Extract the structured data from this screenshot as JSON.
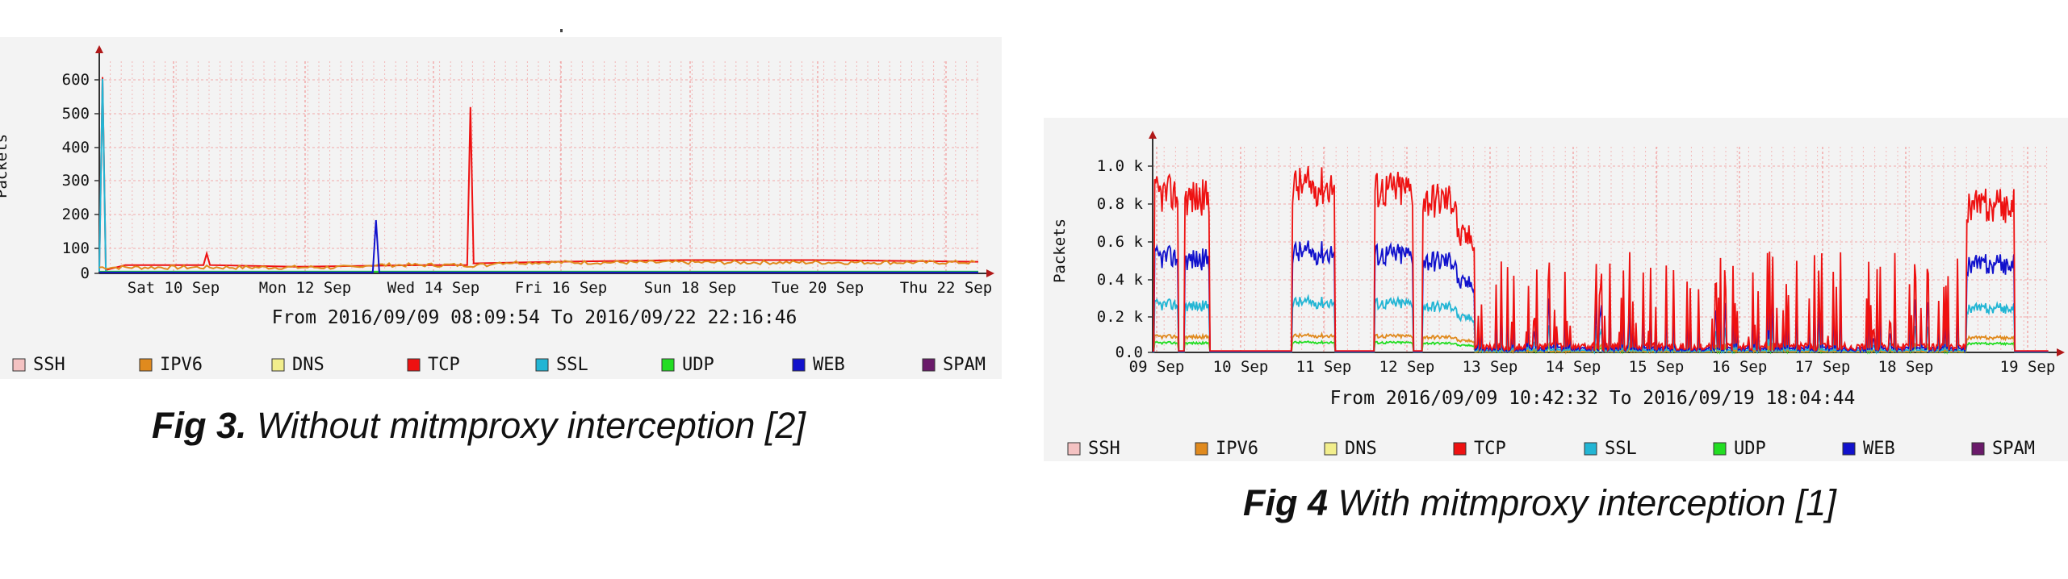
{
  "charts": [
    {
      "type": "line",
      "ylabel": "Packets",
      "yticks": [
        "600",
        "500",
        "400",
        "300",
        "200",
        "100",
        "0"
      ],
      "ylim": [
        0,
        650
      ],
      "xticks": [
        "Sat 10 Sep",
        "Mon 12 Sep",
        "Wed 14 Sep",
        "Fri 16 Sep",
        "Sun 18 Sep",
        "Tue 20 Sep",
        "Thu 22 Sep"
      ],
      "xrange_days": 13.5,
      "range_text": "From 2016/09/09 08:09:54 To 2016/09/22 22:16:46",
      "caption_bold": "Fig 3.",
      "caption_rest": " Without mitmproxy interception [2]"
    },
    {
      "type": "line",
      "ylabel": "Packets",
      "yticks": [
        "1.0 k",
        "0.8 k",
        "0.6 k",
        "0.4 k",
        "0.2 k",
        "0.0"
      ],
      "ylim": [
        0,
        1100
      ],
      "xticks": [
        "09 Sep",
        "10 Sep",
        "11 Sep",
        "12 Sep",
        "13 Sep",
        "14 Sep",
        "15 Sep",
        "16 Sep",
        "17 Sep",
        "18 Sep",
        "19 Sep"
      ],
      "xrange_days": 10.3,
      "range_text": "From 2016/09/09 10:42:32 To 2016/09/19 18:04:44",
      "caption_bold": "Fig 4",
      "caption_rest": " With mitmproxy interception [1]"
    }
  ],
  "legend": [
    {
      "name": "SSH",
      "color": "#f4c2c2"
    },
    {
      "name": "IPV6",
      "color": "#e08a1e"
    },
    {
      "name": "DNS",
      "color": "#f2ee8c"
    },
    {
      "name": "TCP",
      "color": "#ee1111"
    },
    {
      "name": "SSL",
      "color": "#22b5d4"
    },
    {
      "name": "UDP",
      "color": "#22dd22"
    },
    {
      "name": "WEB",
      "color": "#1111cc"
    },
    {
      "name": "SPAM",
      "color": "#6a1a6a"
    }
  ],
  "chart_data": [
    {
      "type": "line",
      "ylabel": "Packets",
      "ylim": [
        0,
        650
      ],
      "x_unit": "days since 2016/09/09 08:09",
      "series": [
        {
          "name": "TCP",
          "points": [
            [
              0.0,
              10
            ],
            [
              0.05,
              590
            ],
            [
              0.1,
              10
            ],
            [
              0.4,
              25
            ],
            [
              1.6,
              25
            ],
            [
              1.65,
              60
            ],
            [
              1.7,
              25
            ],
            [
              3.0,
              20
            ],
            [
              5.0,
              25
            ],
            [
              5.65,
              25
            ],
            [
              5.7,
              500
            ],
            [
              5.75,
              30
            ],
            [
              7.0,
              35
            ],
            [
              9.0,
              40
            ],
            [
              11.0,
              40
            ],
            [
              13.5,
              35
            ]
          ]
        },
        {
          "name": "SSL",
          "points": [
            [
              0.0,
              5
            ],
            [
              0.05,
              585
            ],
            [
              0.1,
              5
            ],
            [
              13.5,
              5
            ]
          ]
        },
        {
          "name": "IPV6",
          "points": [
            [
              0.0,
              15
            ],
            [
              2.0,
              20
            ],
            [
              4.0,
              20
            ],
            [
              6.0,
              30
            ],
            [
              9.0,
              35
            ],
            [
              13.5,
              30
            ]
          ]
        },
        {
          "name": "UDP",
          "points": [
            [
              0.0,
              5
            ],
            [
              13.5,
              5
            ]
          ]
        },
        {
          "name": "WEB",
          "points": [
            [
              0.0,
              3
            ],
            [
              4.2,
              3
            ],
            [
              4.25,
              160
            ],
            [
              4.3,
              3
            ],
            [
              13.5,
              3
            ]
          ]
        }
      ]
    },
    {
      "type": "line",
      "ylabel": "Packets",
      "ylim": [
        0,
        1100
      ],
      "x_unit": "days since 2016/09/09 00:00",
      "busy_blocks": [
        [
          0.02,
          0.3,
          950
        ],
        [
          0.37,
          0.65,
          930
        ],
        [
          1.6,
          2.1,
          1000
        ],
        [
          2.55,
          3.0,
          980
        ],
        [
          3.1,
          3.7,
          920
        ],
        [
          9.35,
          9.9,
          880
        ]
      ],
      "series": [
        {
          "name": "TCP",
          "peak_ratio": 1.0
        },
        {
          "name": "WEB",
          "peak_ratio": 0.6
        },
        {
          "name": "SSL",
          "peak_ratio": 0.3
        },
        {
          "name": "IPV6",
          "peak_ratio": 0.1
        },
        {
          "name": "UDP",
          "peak_ratio": 0.06
        }
      ]
    }
  ]
}
